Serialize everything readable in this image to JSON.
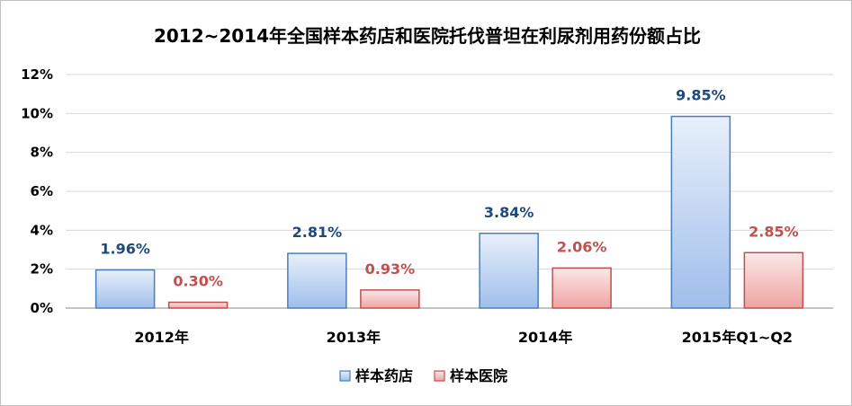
{
  "chart_data": {
    "type": "bar",
    "title": "2012~2014年全国样本药店和医院托伐普坦在利尿剂用药份额占比",
    "categories": [
      "2012年",
      "2013年",
      "2014年",
      "2015年Q1~Q2"
    ],
    "series": [
      {
        "name": "样本药店",
        "values": [
          1.96,
          2.81,
          3.84,
          9.85
        ],
        "labels": [
          "1.96%",
          "2.81%",
          "3.84%",
          "9.85%"
        ],
        "color": "#4a7ebb",
        "label_color": "#1f497d"
      },
      {
        "name": "样本医院",
        "values": [
          0.3,
          0.93,
          2.06,
          2.85
        ],
        "labels": [
          "0.30%",
          "0.93%",
          "2.06%",
          "2.85%"
        ],
        "color": "#c0504d",
        "label_color": "#c0504d"
      }
    ],
    "y_ticks": [
      "0%",
      "2%",
      "4%",
      "6%",
      "8%",
      "10%",
      "12%"
    ],
    "ylim": [
      0,
      12
    ],
    "grid": true,
    "legend_position": "bottom"
  }
}
